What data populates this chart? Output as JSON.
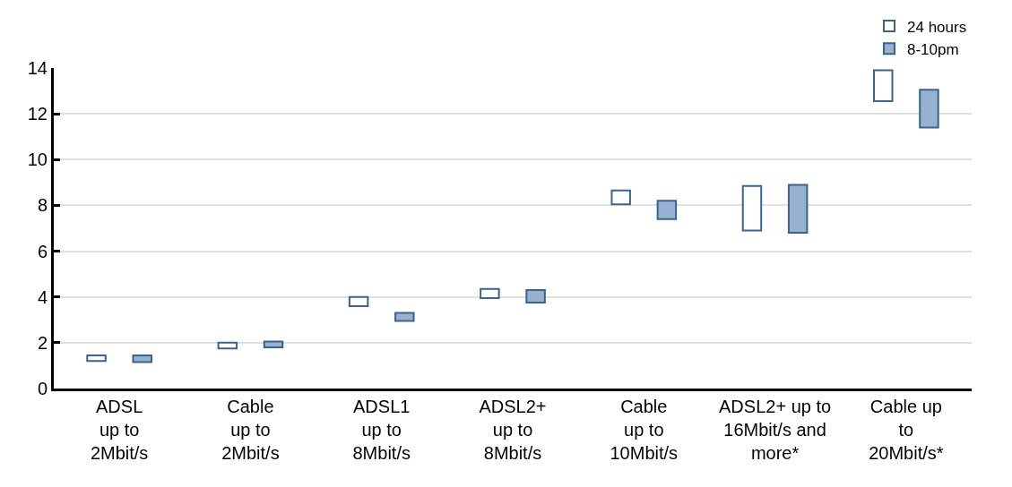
{
  "chart_data": {
    "type": "bar",
    "categories": [
      "ADSL\nup to\n2Mbit/s",
      "Cable\nup to\n2Mbit/s",
      "ADSL1\nup to\n8Mbit/s",
      "ADSL2+\nup to\n8Mbit/s",
      "Cable\nup to\n10Mbit/s",
      "ADSL2+ up to\n16Mbit/s and\nmore*",
      "Cable up\nto\n20Mbit/s*"
    ],
    "series": [
      {
        "name": "24 hours",
        "color": "#ffffff",
        "base": [
          1.2,
          1.75,
          3.6,
          3.95,
          8.05,
          6.9,
          12.55
        ],
        "values": [
          0.25,
          0.25,
          0.4,
          0.4,
          0.6,
          1.95,
          1.35
        ]
      },
      {
        "name": "8-10pm",
        "color": "#97b1d0",
        "base": [
          1.15,
          1.8,
          2.95,
          3.75,
          7.4,
          6.8,
          11.4
        ],
        "values": [
          0.3,
          0.25,
          0.35,
          0.55,
          0.8,
          2.1,
          1.65
        ]
      }
    ],
    "ylim": [
      0,
      14
    ],
    "yticks": [
      0,
      2,
      4,
      6,
      8,
      10,
      12,
      14
    ],
    "grid": "y",
    "legend": "top right"
  }
}
